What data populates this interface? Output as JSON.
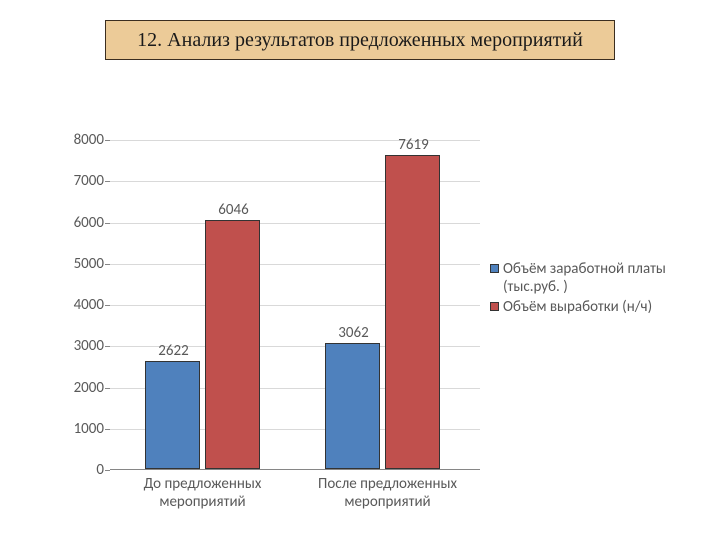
{
  "title": "12. Анализ результатов предложенных мероприятий",
  "title_bg": "#eccb98",
  "chart": {
    "type": "bar",
    "ymin": 0,
    "ymax": 8000,
    "ytick_step": 1000,
    "grid_color": "#d9d9d9",
    "axis_color": "#868686",
    "text_color": "#595959",
    "label_fontsize": 15,
    "categories": [
      "До предложенных мероприятий",
      "После предложенных мероприятий"
    ],
    "series": [
      {
        "name": "Объём заработной платы (тыс.руб. )",
        "color": "#4f81bd",
        "values": [
          2622,
          3062
        ]
      },
      {
        "name": "Объём выработки (н/ч)",
        "color": "#c0504d",
        "values": [
          6046,
          7619
        ]
      }
    ]
  }
}
